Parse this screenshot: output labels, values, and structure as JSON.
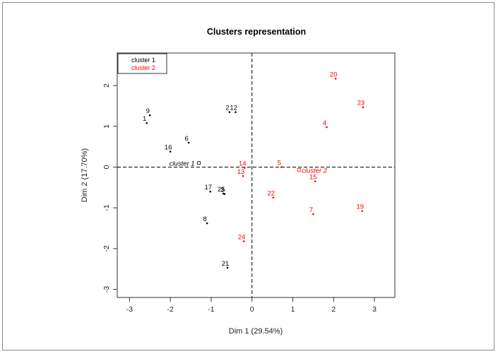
{
  "chart_data": {
    "type": "scatter",
    "title": "Clusters representation",
    "xlabel": "Dim 1 (29.54%)",
    "ylabel": "Dim 2 (17.70%)",
    "xlim": [
      -3.3,
      3.5
    ],
    "ylim": [
      -3.2,
      2.8
    ],
    "xticks": [
      -3,
      -2,
      -1,
      0,
      1,
      2,
      3
    ],
    "yticks": [
      -3,
      -2,
      -1,
      0,
      1,
      2
    ],
    "grid": false,
    "reference_lines": {
      "x": 0,
      "y": 0,
      "style": "dashed"
    },
    "legend": {
      "position": "top-left",
      "entries": [
        {
          "label": "cluster 1",
          "color": "#000000"
        },
        {
          "label": "cluster 2",
          "color": "#ff0000"
        }
      ]
    },
    "series": [
      {
        "color": "#000000",
        "points": [
          {
            "label": "9",
            "x": -2.5,
            "y": 1.27
          },
          {
            "label": "1",
            "x": -2.58,
            "y": 1.08
          },
          {
            "label": "6",
            "x": -1.55,
            "y": 0.6
          },
          {
            "label": "16",
            "x": -2.0,
            "y": 0.38
          },
          {
            "label": "2",
            "x": -0.55,
            "y": 1.35
          },
          {
            "label": "12",
            "x": -0.4,
            "y": 1.35
          },
          {
            "label": "17",
            "x": -1.02,
            "y": -0.6
          },
          {
            "label": "25",
            "x": -0.7,
            "y": -0.65
          },
          {
            "label": "3",
            "x": -0.67,
            "y": -0.66
          },
          {
            "label": "8",
            "x": -1.1,
            "y": -1.38
          },
          {
            "label": "21",
            "x": -0.6,
            "y": -2.47
          }
        ],
        "centroid": {
          "label": "cluster 1",
          "x": -1.3,
          "y": 0.1
        }
      },
      {
        "color": "#ff0000",
        "points": [
          {
            "label": "20",
            "x": 2.05,
            "y": 2.17
          },
          {
            "label": "23",
            "x": 2.72,
            "y": 1.47
          },
          {
            "label": "4",
            "x": 1.83,
            "y": 0.98
          },
          {
            "label": "5",
            "x": 0.72,
            "y": 0.0
          },
          {
            "label": "14",
            "x": -0.18,
            "y": -0.02
          },
          {
            "label": "13",
            "x": -0.22,
            "y": -0.22
          },
          {
            "label": "15",
            "x": 1.55,
            "y": -0.35
          },
          {
            "label": "22",
            "x": 0.52,
            "y": -0.75
          },
          {
            "label": "7",
            "x": 1.5,
            "y": -1.15
          },
          {
            "label": "19",
            "x": 2.7,
            "y": -1.08
          },
          {
            "label": "24",
            "x": -0.2,
            "y": -1.82
          }
        ],
        "centroid": {
          "label": "cluster 2",
          "x": 1.15,
          "y": -0.07
        }
      }
    ]
  }
}
